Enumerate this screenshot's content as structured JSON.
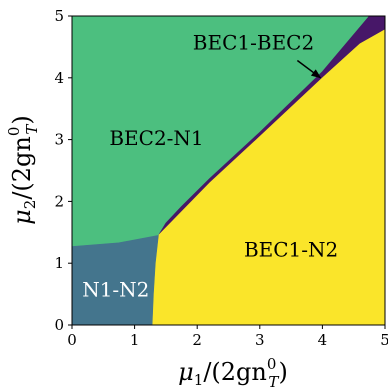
{
  "chart_data": {
    "type": "phase-diagram",
    "xlabel": {
      "base": "μ",
      "sub": "1",
      "rest": "/(2gn",
      "sup": "0",
      "sub2": "T",
      "close": ")"
    },
    "ylabel": {
      "base": "μ",
      "sub": "2",
      "rest": "/(2gn",
      "sup": "0",
      "sub2": "T",
      "close": ")"
    },
    "xlim": [
      0,
      5
    ],
    "ylim": [
      0,
      5
    ],
    "x_ticks": [
      0,
      1,
      2,
      3,
      4,
      5
    ],
    "y_ticks": [
      0,
      1,
      2,
      3,
      4,
      5
    ],
    "x_tick_labels": [
      "0",
      "1",
      "2",
      "3",
      "4",
      "5"
    ],
    "y_tick_labels": [
      "0",
      "1",
      "2",
      "3",
      "4",
      "5"
    ],
    "regions": [
      {
        "label": "BEC2-N1",
        "color": "#4cbf7f",
        "label_color": "#000000",
        "label_at": [
          1.35,
          3.0
        ],
        "polygon": [
          [
            0,
            1.27
          ],
          [
            0.75,
            1.33
          ],
          [
            1.38,
            1.45
          ],
          [
            1.5,
            1.65
          ],
          [
            1.75,
            1.92
          ],
          [
            2.2,
            2.37
          ],
          [
            3.0,
            3.12
          ],
          [
            4.0,
            4.1
          ],
          [
            4.75,
            5.0
          ],
          [
            0,
            5.0
          ]
        ]
      },
      {
        "label": "BEC1-BEC2",
        "color": "#471768",
        "label_color": "#000000",
        "label_at": [
          2.9,
          4.55
        ],
        "polygon": [
          [
            1.38,
            1.45
          ],
          [
            2.2,
            2.3
          ],
          [
            3.0,
            3.05
          ],
          [
            4.0,
            4.0
          ],
          [
            4.6,
            4.55
          ],
          [
            5.0,
            4.78
          ],
          [
            5.0,
            5.0
          ],
          [
            4.75,
            5.0
          ],
          [
            4.0,
            4.1
          ],
          [
            3.0,
            3.12
          ],
          [
            2.2,
            2.37
          ],
          [
            1.75,
            1.92
          ],
          [
            1.5,
            1.65
          ]
        ]
      },
      {
        "label": "BEC1-N2",
        "color": "#fae52a",
        "label_color": "#000000",
        "label_at": [
          3.5,
          1.2
        ],
        "polygon": [
          [
            1.28,
            0
          ],
          [
            1.3,
            0.5
          ],
          [
            1.33,
            1.0
          ],
          [
            1.38,
            1.45
          ],
          [
            2.2,
            2.3
          ],
          [
            3.0,
            3.05
          ],
          [
            4.0,
            4.0
          ],
          [
            4.6,
            4.55
          ],
          [
            5.0,
            4.78
          ],
          [
            5.0,
            0
          ]
        ]
      },
      {
        "label": "N1-N2",
        "color": "#44758d",
        "label_color": "#ffffff",
        "label_at": [
          0.7,
          0.55
        ],
        "polygon": [
          [
            0,
            0
          ],
          [
            1.28,
            0
          ],
          [
            1.3,
            0.5
          ],
          [
            1.33,
            1.0
          ],
          [
            1.38,
            1.45
          ],
          [
            0.75,
            1.33
          ],
          [
            0,
            1.27
          ]
        ]
      }
    ],
    "annotation": {
      "text": "BEC1-BEC2",
      "arrow_from": [
        3.6,
        4.28
      ],
      "arrow_to": [
        3.97,
        4.0
      ]
    }
  }
}
